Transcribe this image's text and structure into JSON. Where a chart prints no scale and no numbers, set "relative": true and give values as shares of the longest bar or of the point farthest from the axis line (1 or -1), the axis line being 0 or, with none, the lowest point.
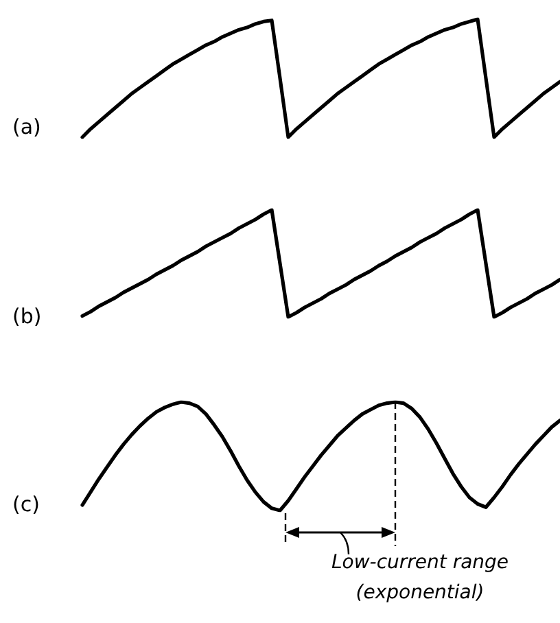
{
  "chart_data": [
    {
      "type": "line",
      "title": "(a)",
      "relative": true,
      "marker": "none",
      "categories": [
        null,
        null,
        null,
        null,
        null,
        null,
        null,
        null,
        null,
        null,
        null,
        null,
        null,
        null,
        null,
        null,
        null,
        null,
        null,
        null,
        null,
        null,
        null,
        null,
        null,
        null,
        null,
        null,
        null,
        null,
        null,
        null,
        null,
        null,
        null,
        null,
        null,
        null,
        null,
        null,
        null,
        null,
        null,
        null,
        null,
        null,
        null,
        null,
        null,
        null,
        null,
        null,
        null,
        null,
        null,
        null,
        null,
        null,
        null
      ],
      "series": [
        {
          "color": "#000000",
          "values": [
            0,
            0.07,
            0.13,
            0.19,
            0.25,
            0.31,
            0.37,
            0.42,
            0.47,
            0.52,
            0.57,
            0.62,
            0.66,
            0.7,
            0.74,
            0.78,
            0.81,
            0.85,
            0.88,
            0.91,
            0.93,
            0.96,
            0.98,
            0.99,
            0.5,
            0,
            0.07,
            0.13,
            0.19,
            0.25,
            0.31,
            0.37,
            0.42,
            0.47,
            0.52,
            0.57,
            0.62,
            0.66,
            0.7,
            0.74,
            0.78,
            0.81,
            0.85,
            0.88,
            0.91,
            0.93,
            0.96,
            0.98,
            1,
            0.5,
            0,
            0.07,
            0.13,
            0.19,
            0.25,
            0.31,
            0.37,
            0.42,
            0.47
          ]
        }
      ]
    },
    {
      "type": "line",
      "title": "(b)",
      "relative": true,
      "marker": "none",
      "categories": [
        null,
        null,
        null,
        null,
        null,
        null,
        null,
        null,
        null,
        null,
        null,
        null,
        null,
        null,
        null,
        null,
        null,
        null,
        null,
        null,
        null,
        null,
        null,
        null,
        null,
        null,
        null,
        null,
        null,
        null,
        null,
        null,
        null,
        null,
        null,
        null,
        null,
        null,
        null,
        null,
        null,
        null,
        null,
        null,
        null,
        null,
        null,
        null,
        null,
        null,
        null,
        null,
        null,
        null,
        null,
        null,
        null,
        null,
        null
      ],
      "series": [
        {
          "color": "#000000",
          "values": [
            0.01,
            0.05,
            0.1,
            0.14,
            0.18,
            0.23,
            0.27,
            0.31,
            0.35,
            0.4,
            0.44,
            0.48,
            0.53,
            0.57,
            0.61,
            0.66,
            0.7,
            0.74,
            0.78,
            0.83,
            0.87,
            0.91,
            0.96,
            1,
            0.5,
            0,
            0.04,
            0.09,
            0.13,
            0.17,
            0.22,
            0.26,
            0.3,
            0.35,
            0.39,
            0.43,
            0.48,
            0.52,
            0.57,
            0.61,
            0.65,
            0.7,
            0.74,
            0.78,
            0.83,
            0.87,
            0.91,
            0.96,
            1,
            0.5,
            0,
            0.04,
            0.09,
            0.13,
            0.17,
            0.22,
            0.26,
            0.3,
            0.35
          ]
        }
      ]
    },
    {
      "type": "line",
      "title": "(c)",
      "relative": true,
      "marker": "none",
      "annotations": [
        "Low-current range",
        "(exponential)"
      ],
      "categories": [
        null,
        null,
        null,
        null,
        null,
        null,
        null,
        null,
        null,
        null,
        null,
        null,
        null,
        null,
        null,
        null,
        null,
        null,
        null,
        null,
        null,
        null,
        null,
        null,
        null,
        null,
        null,
        null,
        null,
        null,
        null,
        null,
        null,
        null,
        null,
        null,
        null,
        null,
        null,
        null,
        null,
        null,
        null,
        null,
        null,
        null,
        null,
        null,
        null,
        null,
        null,
        null,
        null,
        null,
        null,
        null,
        null,
        null,
        null
      ],
      "series": [
        {
          "color": "#000000",
          "values": [
            0.05,
            0.17,
            0.29,
            0.4,
            0.51,
            0.61,
            0.7,
            0.78,
            0.85,
            0.91,
            0.95,
            0.98,
            1,
            0.99,
            0.96,
            0.89,
            0.79,
            0.68,
            0.55,
            0.41,
            0.28,
            0.17,
            0.08,
            0.02,
            0,
            0.09,
            0.2,
            0.31,
            0.41,
            0.51,
            0.6,
            0.69,
            0.76,
            0.83,
            0.89,
            0.93,
            0.97,
            0.99,
            1,
            0.99,
            0.94,
            0.86,
            0.75,
            0.62,
            0.48,
            0.34,
            0.22,
            0.12,
            0.06,
            0.03,
            0.12,
            0.22,
            0.33,
            0.43,
            0.52,
            0.61,
            0.69,
            0.77,
            0.83
          ]
        }
      ]
    }
  ]
}
